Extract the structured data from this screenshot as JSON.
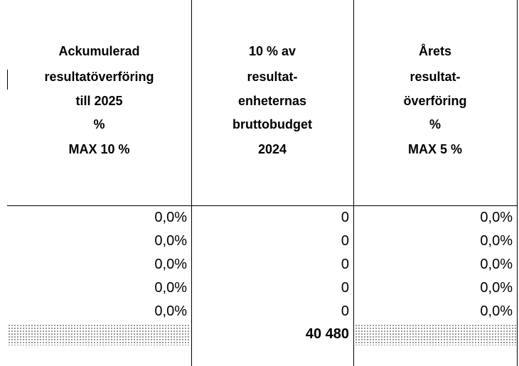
{
  "table": {
    "header": [
      [
        "Ackumulerad",
        "resultatöverföring",
        "till 2025",
        "%",
        "MAX 10 %"
      ],
      [
        "10 % av",
        "resultat-",
        "enheternas",
        "bruttobudget",
        "2024"
      ],
      [
        "Årets",
        "resultat-",
        "överföring",
        "%",
        "MAX 5 %"
      ]
    ],
    "rows": [
      [
        "0,0%",
        "0",
        "0,0%"
      ],
      [
        "0,0%",
        "0",
        "0,0%"
      ],
      [
        "0,0%",
        "0",
        "0,0%"
      ],
      [
        "0,0%",
        "0",
        "0,0%"
      ],
      [
        "0,0%",
        "0",
        "0,0%"
      ]
    ],
    "total": "40 480"
  }
}
